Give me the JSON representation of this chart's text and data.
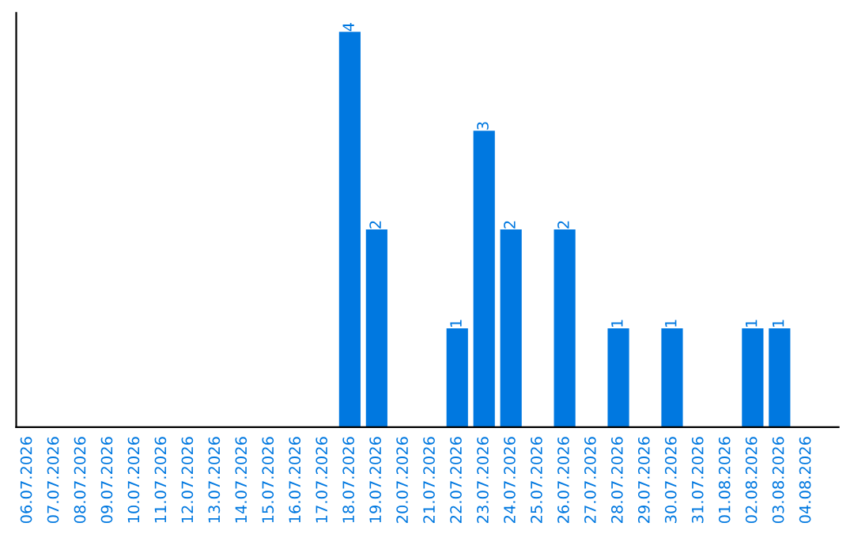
{
  "chart_data": {
    "type": "bar",
    "categories": [
      "06.07.2026",
      "07.07.2026",
      "08.07.2026",
      "09.07.2026",
      "10.07.2026",
      "11.07.2026",
      "12.07.2026",
      "13.07.2026",
      "14.07.2026",
      "15.07.2026",
      "16.07.2026",
      "17.07.2026",
      "18.07.2026",
      "19.07.2026",
      "20.07.2026",
      "21.07.2026",
      "22.07.2026",
      "23.07.2026",
      "24.07.2026",
      "25.07.2026",
      "26.07.2026",
      "27.07.2026",
      "28.07.2026",
      "29.07.2026",
      "30.07.2026",
      "31.07.2026",
      "01.08.2026",
      "02.08.2026",
      "03.08.2026",
      "04.08.2026"
    ],
    "values": [
      null,
      null,
      null,
      null,
      null,
      null,
      null,
      null,
      null,
      null,
      null,
      null,
      4,
      2,
      null,
      null,
      1,
      3,
      2,
      null,
      2,
      null,
      1,
      null,
      1,
      null,
      null,
      1,
      1,
      null
    ],
    "value_labels": [
      null,
      null,
      null,
      null,
      null,
      null,
      null,
      null,
      null,
      null,
      null,
      null,
      "4",
      "2",
      null,
      null,
      "1",
      "3",
      "2",
      null,
      "2",
      null,
      "1",
      null,
      "1",
      null,
      null,
      "1",
      "1",
      null
    ],
    "color": "#0078e0",
    "tick_labels": "x",
    "grid": false,
    "legend": false
  }
}
